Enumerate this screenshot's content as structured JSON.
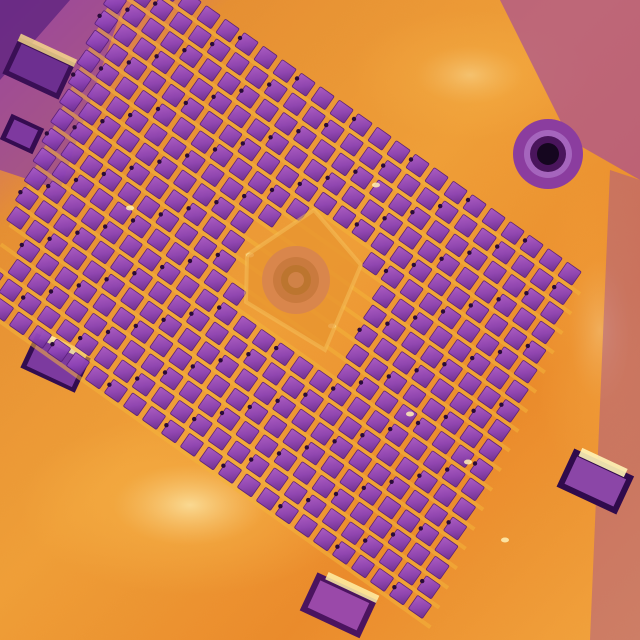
{
  "image": {
    "type": "aerial-thermal-photo",
    "palette": [
      "#2a0a3a",
      "#5b1a7a",
      "#8e3a9e",
      "#c04a8a",
      "#e0662e",
      "#f2962a",
      "#fcd070",
      "#fff6c0"
    ],
    "colors": {
      "roof_surface": "#e98a1f",
      "roof_hot": "#f6b24a",
      "panel_cool": "#8f47b8",
      "panel_edge": "#5a1f7c",
      "panel_gap_hot": "#f4b43a",
      "rack_bolt": "#2a0b3a",
      "vent_dark": "#1b0626",
      "reflection_hot": "#fff1b5"
    },
    "subject": {
      "panel_array": {
        "rows": 18,
        "columns": 24,
        "missing_cutout": true
      },
      "roof_vents": 2,
      "hvac_units": 5
    }
  }
}
